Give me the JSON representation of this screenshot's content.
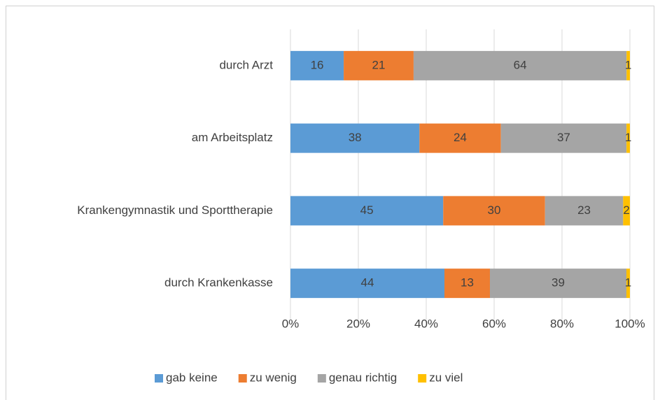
{
  "chart_data": {
    "type": "bar",
    "orientation": "horizontal",
    "stacking": "percent",
    "categories": [
      "durch Arzt",
      "am Arbeitsplatz",
      "Krankengymnastik und Sporttherapie",
      "durch Krankenkasse"
    ],
    "series": [
      {
        "name": "gab keine",
        "color": "#5b9bd5",
        "values": [
          16,
          38,
          45,
          44
        ]
      },
      {
        "name": "zu wenig",
        "color": "#ed7d31",
        "values": [
          21,
          24,
          30,
          13
        ]
      },
      {
        "name": "genau richtig",
        "color": "#a5a5a5",
        "values": [
          64,
          37,
          23,
          39
        ]
      },
      {
        "name": "zu viel",
        "color": "#ffc000",
        "values": [
          1,
          1,
          2,
          1
        ]
      }
    ],
    "xlim": [
      0,
      100
    ],
    "xticks": [
      {
        "value": 0,
        "label": "0%"
      },
      {
        "value": 20,
        "label": "20%"
      },
      {
        "value": 40,
        "label": "40%"
      },
      {
        "value": 60,
        "label": "60%"
      },
      {
        "value": 80,
        "label": "80%"
      },
      {
        "value": 100,
        "label": "100%"
      }
    ],
    "grid": true,
    "legend": "bottom"
  }
}
